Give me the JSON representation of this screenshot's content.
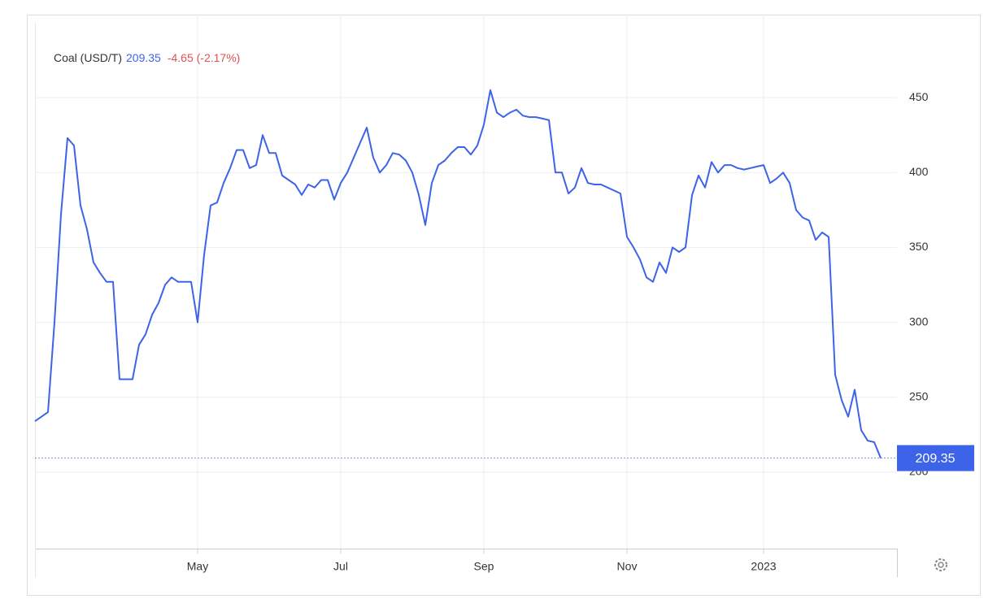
{
  "chart_data": {
    "type": "line",
    "title": "Coal (USD/T)",
    "change": "-4.65 (-2.17%)",
    "color": "#3d63e8",
    "change_color": "#e05252",
    "categories": [
      null,
      null,
      null,
      null,
      null,
      null,
      null,
      null,
      null,
      null,
      null,
      null,
      null,
      null,
      null,
      null,
      null,
      null,
      null,
      null,
      null,
      null,
      null,
      null,
      null,
      "May",
      null,
      null,
      null,
      null,
      null,
      null,
      null,
      null,
      null,
      null,
      null,
      null,
      null,
      null,
      null,
      null,
      null,
      null,
      null,
      null,
      null,
      "Jul",
      null,
      null,
      null,
      null,
      null,
      null,
      null,
      null,
      null,
      null,
      null,
      null,
      null,
      null,
      null,
      null,
      null,
      null,
      null,
      null,
      null,
      "Sep",
      null,
      null,
      null,
      null,
      null,
      null,
      null,
      null,
      null,
      null,
      null,
      null,
      null,
      null,
      null,
      null,
      null,
      null,
      null,
      null,
      null,
      "Nov",
      null,
      null,
      null,
      null,
      null,
      null,
      null,
      null,
      null,
      null,
      null,
      null,
      null,
      null,
      null,
      null,
      null,
      null,
      null,
      null,
      "2023",
      null,
      null,
      null,
      null,
      null,
      null,
      null,
      null,
      null,
      null,
      null,
      null,
      null,
      null,
      null,
      null,
      null,
      null
    ],
    "values": [
      234,
      237,
      240,
      300,
      372,
      423,
      418,
      378,
      362,
      340,
      333,
      327,
      327,
      262,
      262,
      262,
      285,
      292,
      305,
      313,
      325,
      330,
      327,
      327,
      327,
      300,
      345,
      378,
      380,
      393,
      403,
      415,
      415,
      403,
      405,
      425,
      413,
      413,
      398,
      395,
      392,
      385,
      392,
      390,
      395,
      395,
      382,
      393,
      400,
      410,
      420,
      430,
      410,
      400,
      405,
      413,
      412,
      408,
      400,
      385,
      365,
      393,
      405,
      408,
      413,
      417,
      417,
      412,
      418,
      432,
      455,
      440,
      437,
      440,
      442,
      438,
      437,
      437,
      436,
      435,
      400,
      400,
      386,
      390,
      403,
      393,
      392,
      392,
      390,
      388,
      386,
      357,
      350,
      342,
      330,
      327,
      340,
      333,
      350,
      347,
      350,
      385,
      398,
      390,
      407,
      400,
      405,
      405,
      403,
      402,
      403,
      404,
      405,
      393,
      396,
      400,
      393,
      375,
      370,
      368,
      355,
      360,
      357,
      265,
      248,
      237,
      255,
      228,
      221,
      220,
      209.35
    ],
    "ylim": [
      150,
      500
    ],
    "yticks": [
      200,
      250,
      300,
      350,
      400,
      450
    ],
    "grid": true
  }
}
